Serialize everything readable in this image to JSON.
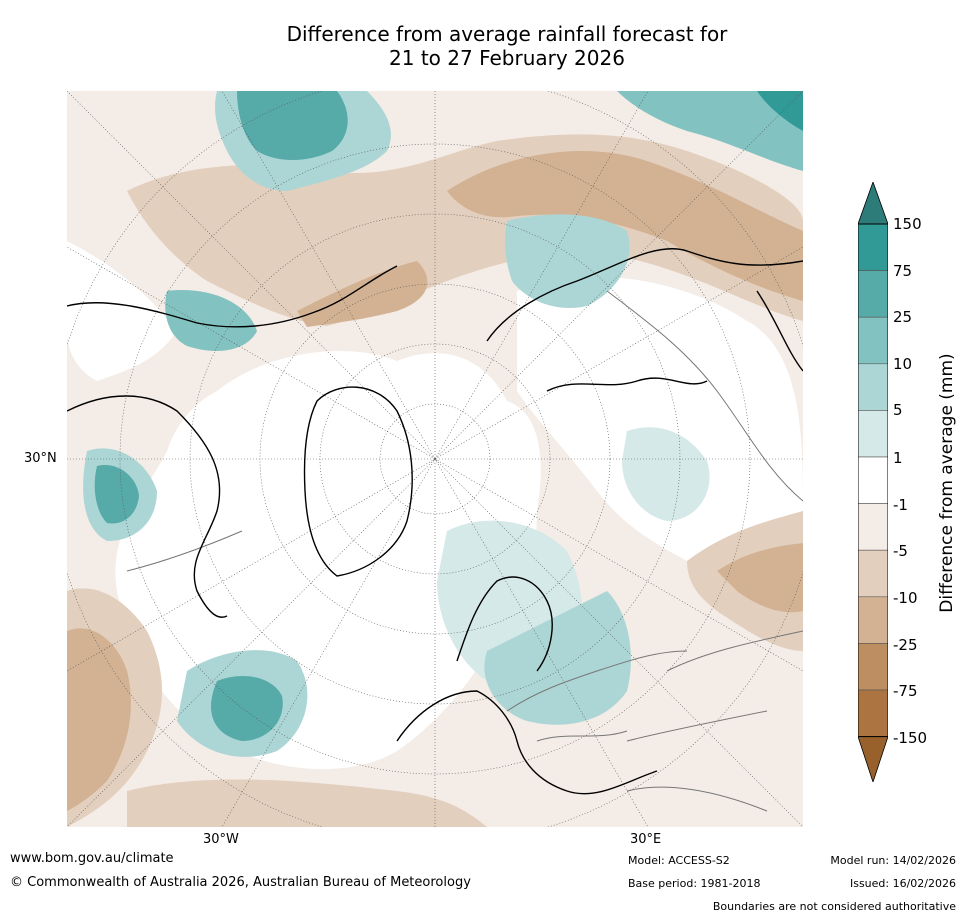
{
  "title_line1": "Difference from average rainfall forecast for",
  "title_line2": "21 to 27 February 2026",
  "map": {
    "lat_label": "30°N",
    "lon_label_west": "30°W",
    "lon_label_east": "30°E"
  },
  "colorbar": {
    "label": "Difference from average (mm)",
    "ticks": [
      "150",
      "75",
      "25",
      "10",
      "5",
      "1",
      "-1",
      "-5",
      "-10",
      "-25",
      "-75",
      "-150"
    ],
    "colors": [
      "#2e7c7a",
      "#319a96",
      "#56aaa8",
      "#82c2c0",
      "#acd6d5",
      "#d5e9e8",
      "#ffffff",
      "#f4ece6",
      "#e3cfbd",
      "#d2b293",
      "#bd8e62",
      "#ab7440",
      "#98612b"
    ]
  },
  "footer": {
    "website": "www.bom.gov.au/climate",
    "copyright": "© Commonwealth of Australia 2026, Australian Bureau of Meteorology",
    "model": "Model: ACCESS-S2",
    "base_period": "Base period: 1981-2018",
    "model_run": "Model run: 14/02/2026",
    "issued": "Issued: 16/02/2026",
    "disclaimer": "Boundaries are not considered authoritative"
  }
}
